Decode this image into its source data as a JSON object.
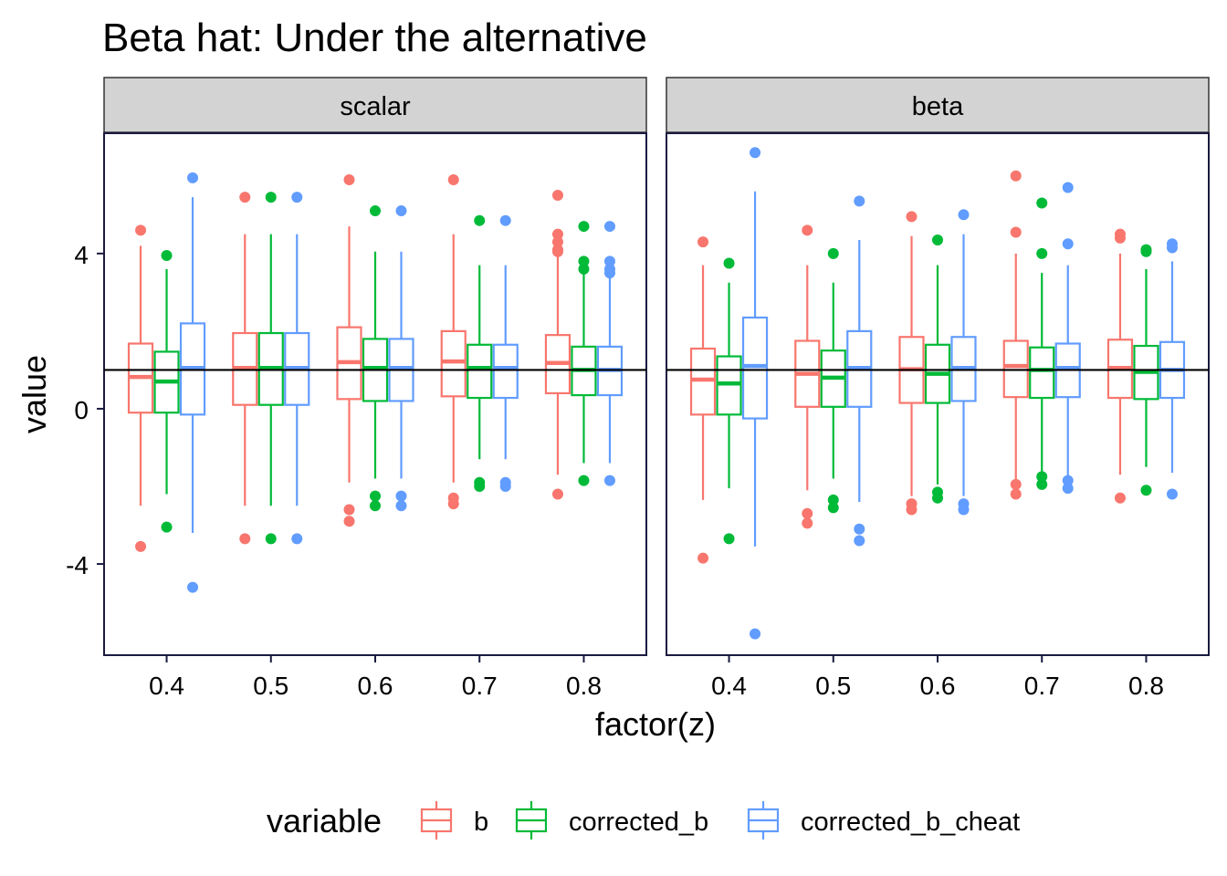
{
  "chart_data": {
    "type": "boxplot",
    "title": "Beta hat: Under the alternative",
    "xlabel": "factor(z)",
    "ylabel": "value",
    "ylim": [
      -6.35,
      7.1
    ],
    "yticks": [
      -4,
      0,
      4
    ],
    "ytick_labels": [
      "-4",
      "0",
      "4"
    ],
    "categories": [
      "0.4",
      "0.5",
      "0.6",
      "0.7",
      "0.8"
    ],
    "reference_line": 1,
    "legend": {
      "title": "variable",
      "position": "bottom",
      "entries": [
        "b",
        "corrected_b",
        "corrected_b_cheat"
      ]
    },
    "series_colors": {
      "b": "#F8766D",
      "corrected_b": "#00BA38",
      "corrected_b_cheat": "#619CFF"
    },
    "panels": [
      {
        "label": "scalar",
        "boxes": [
          {
            "x": "0.4",
            "series": "b",
            "low": -2.5,
            "q1": -0.1,
            "median": 0.82,
            "q3": 1.68,
            "high": 4.2,
            "outliers": [
              4.6,
              -3.55
            ]
          },
          {
            "x": "0.4",
            "series": "corrected_b",
            "low": -2.2,
            "q1": -0.1,
            "median": 0.7,
            "q3": 1.47,
            "high": 3.6,
            "outliers": [
              3.95,
              -3.05
            ]
          },
          {
            "x": "0.4",
            "series": "corrected_b_cheat",
            "low": -3.2,
            "q1": -0.15,
            "median": 1.05,
            "q3": 2.2,
            "high": 5.45,
            "outliers": [
              5.95,
              -4.6
            ]
          },
          {
            "x": "0.5",
            "series": "b",
            "low": -2.5,
            "q1": 0.1,
            "median": 1.05,
            "q3": 1.95,
            "high": 4.5,
            "outliers": [
              5.45,
              -3.35
            ]
          },
          {
            "x": "0.5",
            "series": "corrected_b",
            "low": -2.5,
            "q1": 0.1,
            "median": 1.05,
            "q3": 1.95,
            "high": 4.5,
            "outliers": [
              5.45,
              -3.35
            ]
          },
          {
            "x": "0.5",
            "series": "corrected_b_cheat",
            "low": -2.5,
            "q1": 0.1,
            "median": 1.05,
            "q3": 1.95,
            "high": 4.5,
            "outliers": [
              5.45,
              -3.35
            ]
          },
          {
            "x": "0.6",
            "series": "b",
            "low": -1.9,
            "q1": 0.25,
            "median": 1.2,
            "q3": 2.1,
            "high": 4.7,
            "outliers": [
              5.9,
              -2.6,
              -2.9
            ]
          },
          {
            "x": "0.6",
            "series": "corrected_b",
            "low": -1.8,
            "q1": 0.2,
            "median": 1.05,
            "q3": 1.8,
            "high": 4.05,
            "outliers": [
              5.1,
              -2.25,
              -2.5
            ]
          },
          {
            "x": "0.6",
            "series": "corrected_b_cheat",
            "low": -1.8,
            "q1": 0.2,
            "median": 1.05,
            "q3": 1.8,
            "high": 4.05,
            "outliers": [
              5.1,
              -2.25,
              -2.5
            ]
          },
          {
            "x": "0.7",
            "series": "b",
            "low": -1.9,
            "q1": 0.32,
            "median": 1.22,
            "q3": 2.0,
            "high": 4.5,
            "outliers": [
              5.9,
              -2.3,
              -2.45
            ]
          },
          {
            "x": "0.7",
            "series": "corrected_b",
            "low": -1.3,
            "q1": 0.28,
            "median": 1.05,
            "q3": 1.65,
            "high": 3.7,
            "outliers": [
              4.85,
              -1.9,
              -2.0
            ]
          },
          {
            "x": "0.7",
            "series": "corrected_b_cheat",
            "low": -1.3,
            "q1": 0.28,
            "median": 1.05,
            "q3": 1.65,
            "high": 3.7,
            "outliers": [
              4.85,
              -1.9,
              -2.0
            ]
          },
          {
            "x": "0.8",
            "series": "b",
            "low": -1.7,
            "q1": 0.4,
            "median": 1.18,
            "q3": 1.9,
            "high": 4.0,
            "outliers": [
              5.5,
              4.5,
              4.3,
              4.1,
              4.05,
              -2.2
            ]
          },
          {
            "x": "0.8",
            "series": "corrected_b",
            "low": -1.4,
            "q1": 0.35,
            "median": 1.0,
            "q3": 1.6,
            "high": 3.5,
            "outliers": [
              4.7,
              3.8,
              3.6,
              -1.85
            ]
          },
          {
            "x": "0.8",
            "series": "corrected_b_cheat",
            "low": -1.4,
            "q1": 0.35,
            "median": 1.0,
            "q3": 1.6,
            "high": 3.5,
            "outliers": [
              4.7,
              3.8,
              3.6,
              3.5,
              -1.85
            ]
          }
        ]
      },
      {
        "label": "beta",
        "boxes": [
          {
            "x": "0.4",
            "series": "b",
            "low": -2.35,
            "q1": -0.15,
            "median": 0.75,
            "q3": 1.55,
            "high": 3.7,
            "outliers": [
              4.3,
              -3.85
            ]
          },
          {
            "x": "0.4",
            "series": "corrected_b",
            "low": -2.05,
            "q1": -0.15,
            "median": 0.65,
            "q3": 1.35,
            "high": 3.25,
            "outliers": [
              3.75,
              -3.35
            ]
          },
          {
            "x": "0.4",
            "series": "corrected_b_cheat",
            "low": -3.55,
            "q1": -0.25,
            "median": 1.1,
            "q3": 2.35,
            "high": 5.6,
            "outliers": [
              6.6,
              -5.8
            ]
          },
          {
            "x": "0.5",
            "series": "b",
            "low": -2.1,
            "q1": 0.05,
            "median": 0.9,
            "q3": 1.75,
            "high": 3.7,
            "outliers": [
              4.6,
              -2.7,
              -2.95
            ]
          },
          {
            "x": "0.5",
            "series": "corrected_b",
            "low": -1.8,
            "q1": 0.05,
            "median": 0.8,
            "q3": 1.5,
            "high": 3.25,
            "outliers": [
              4.0,
              -2.35,
              -2.55
            ]
          },
          {
            "x": "0.5",
            "series": "corrected_b_cheat",
            "low": -2.4,
            "q1": 0.05,
            "median": 1.05,
            "q3": 2.0,
            "high": 4.35,
            "outliers": [
              5.35,
              -3.1,
              -3.4
            ]
          },
          {
            "x": "0.6",
            "series": "b",
            "low": -2.25,
            "q1": 0.15,
            "median": 1.02,
            "q3": 1.85,
            "high": 4.45,
            "outliers": [
              4.95,
              -2.45,
              -2.6
            ]
          },
          {
            "x": "0.6",
            "series": "corrected_b",
            "low": -1.95,
            "q1": 0.15,
            "median": 0.9,
            "q3": 1.65,
            "high": 3.7,
            "outliers": [
              4.35,
              -2.15,
              -2.3
            ]
          },
          {
            "x": "0.6",
            "series": "corrected_b_cheat",
            "low": -2.25,
            "q1": 0.2,
            "median": 1.05,
            "q3": 1.85,
            "high": 4.5,
            "outliers": [
              5.0,
              -2.45,
              -2.6
            ]
          },
          {
            "x": "0.7",
            "series": "b",
            "low": -1.9,
            "q1": 0.3,
            "median": 1.1,
            "q3": 1.75,
            "high": 4.0,
            "outliers": [
              6.0,
              4.55,
              -1.95,
              -2.2
            ]
          },
          {
            "x": "0.7",
            "series": "corrected_b",
            "low": -1.65,
            "q1": 0.28,
            "median": 1.0,
            "q3": 1.58,
            "high": 3.5,
            "outliers": [
              5.3,
              4.0,
              -1.75,
              -1.95
            ]
          },
          {
            "x": "0.7",
            "series": "corrected_b_cheat",
            "low": -1.75,
            "q1": 0.3,
            "median": 1.05,
            "q3": 1.68,
            "high": 3.7,
            "outliers": [
              5.7,
              4.25,
              -1.85,
              -2.05
            ]
          },
          {
            "x": "0.8",
            "series": "b",
            "low": -1.7,
            "q1": 0.28,
            "median": 1.05,
            "q3": 1.78,
            "high": 4.0,
            "outliers": [
              4.5,
              4.4,
              -2.3
            ]
          },
          {
            "x": "0.8",
            "series": "corrected_b",
            "low": -1.5,
            "q1": 0.25,
            "median": 0.95,
            "q3": 1.62,
            "high": 3.6,
            "outliers": [
              4.1,
              4.05,
              -2.1
            ]
          },
          {
            "x": "0.8",
            "series": "corrected_b_cheat",
            "low": -1.65,
            "q1": 0.28,
            "median": 1.0,
            "q3": 1.72,
            "high": 3.8,
            "outliers": [
              4.25,
              4.15,
              -2.2
            ]
          }
        ]
      }
    ]
  }
}
